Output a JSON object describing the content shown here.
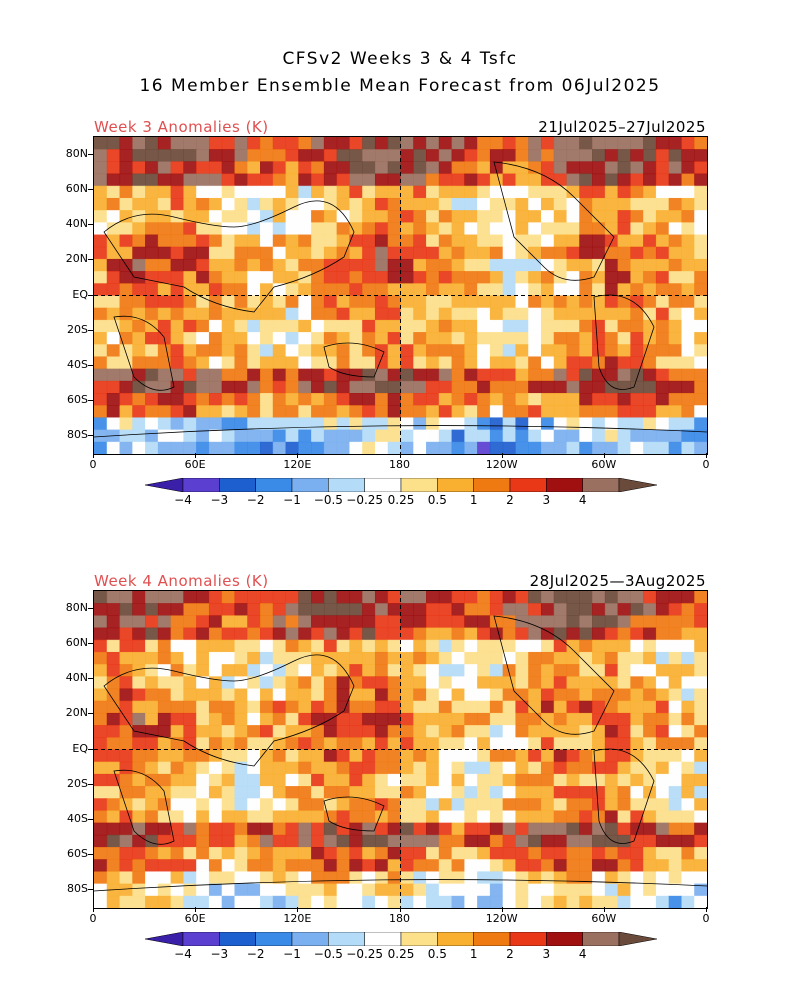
{
  "figure": {
    "title_line1": "CFSv2 Weeks 3 & 4 Tsfc",
    "title_line2": "16 Member Ensemble Mean Forecast from 06Jul2025"
  },
  "panels": [
    {
      "left_label": "Week 3 Anomalies (K)",
      "right_label": "21Jul2025–27Jul2025"
    },
    {
      "left_label": "Week 4 Anomalies (K)",
      "right_label": "28Jul2025—3Aug2025"
    }
  ],
  "axes": {
    "lat_labels": [
      "80N",
      "60N",
      "40N",
      "20N",
      "EQ",
      "20S",
      "40S",
      "60S",
      "80S"
    ],
    "lat_values": [
      80,
      60,
      40,
      20,
      0,
      -20,
      -40,
      -60,
      -80
    ],
    "lon_labels": [
      "0",
      "60E",
      "120E",
      "180",
      "120W",
      "60W",
      "0"
    ],
    "lon_values": [
      0,
      60,
      120,
      180,
      240,
      300,
      360
    ]
  },
  "colorbar": {
    "labels": [
      "−4",
      "−3",
      "−2",
      "−1",
      "−0.5",
      "−0.25",
      "0.25",
      "0.5",
      "1",
      "2",
      "3",
      "4"
    ],
    "colors": [
      "#3a1fa8",
      "#5a3fd0",
      "#1e5fd0",
      "#3a8ae8",
      "#7ab0f0",
      "#b4dcf8",
      "#ffffff",
      "#fde08a",
      "#f9b030",
      "#f07a12",
      "#e83818",
      "#a01010",
      "#9a7060",
      "#6a4a3a"
    ]
  }
}
